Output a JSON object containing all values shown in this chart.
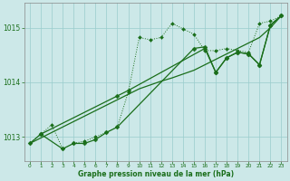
{
  "xlabel": "Graphe pression niveau de la mer (hPa)",
  "bg_color": "#cce8e8",
  "grid_color": "#99cccc",
  "line_color": "#1a6e1a",
  "x": [
    0,
    1,
    2,
    3,
    4,
    5,
    6,
    7,
    8,
    9,
    10,
    11,
    12,
    13,
    14,
    15,
    16,
    17,
    18,
    19,
    20,
    21,
    22,
    23
  ],
  "series_dot": [
    1012.88,
    1013.05,
    1013.22,
    1012.78,
    1012.88,
    1012.92,
    1013.0,
    1013.08,
    1013.18,
    1013.82,
    1014.82,
    1014.78,
    1014.82,
    1015.08,
    1014.98,
    1014.88,
    1014.58,
    1014.58,
    1014.62,
    1014.58,
    1014.55,
    1015.08,
    1015.12,
    1015.22
  ],
  "series1": [
    1012.88,
    1013.05,
    null,
    null,
    null,
    null,
    null,
    null,
    1013.75,
    1013.85,
    null,
    null,
    null,
    null,
    null,
    null,
    1014.62,
    1014.18,
    1014.45,
    1014.55,
    1014.52,
    1014.32,
    1015.05,
    1015.22
  ],
  "series2": [
    null,
    1013.05,
    null,
    1012.78,
    1012.88,
    1012.88,
    1012.95,
    1013.08,
    1013.18,
    null,
    null,
    null,
    null,
    null,
    null,
    1014.62,
    1014.65,
    1014.18,
    1014.45,
    1014.55,
    1014.52,
    1014.32,
    1015.05,
    1015.22
  ],
  "trend": [
    1012.88,
    1012.98,
    1013.08,
    1013.18,
    1013.28,
    1013.38,
    1013.48,
    1013.58,
    1013.68,
    1013.78,
    1013.88,
    1013.95,
    1014.02,
    1014.08,
    1014.15,
    1014.22,
    1014.32,
    1014.42,
    1014.52,
    1014.62,
    1014.72,
    1014.82,
    1015.0,
    1015.22
  ],
  "ylim": [
    1012.55,
    1015.45
  ],
  "yticks": [
    1013,
    1014,
    1015
  ],
  "xticks": [
    0,
    1,
    2,
    3,
    4,
    5,
    6,
    7,
    8,
    9,
    10,
    11,
    12,
    13,
    14,
    15,
    16,
    17,
    18,
    19,
    20,
    21,
    22,
    23
  ]
}
